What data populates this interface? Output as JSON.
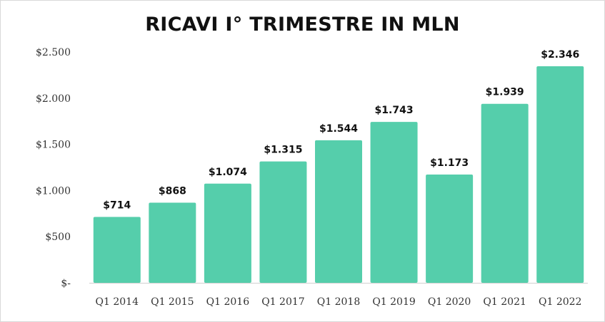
{
  "chart_data": {
    "type": "bar",
    "title": "RICAVI I° TRIMESTRE IN MLN",
    "xlabel": "",
    "ylabel": "",
    "categories": [
      "Q1 2014",
      "Q1 2015",
      "Q1 2016",
      "Q1 2017",
      "Q1 2018",
      "Q1 2019",
      "Q1 2020",
      "Q1 2021",
      "Q1 2022"
    ],
    "values": [
      714,
      868,
      1074,
      1315,
      1544,
      1743,
      1173,
      1939,
      2346
    ],
    "data_labels": [
      "$714",
      "$868",
      "$1.074",
      "$1.315",
      "$1.544",
      "$1.743",
      "$1.173",
      "$1.939",
      "$2.346"
    ],
    "ylim": [
      0,
      2500
    ],
    "yticks": [
      0,
      500,
      1000,
      1500,
      2000,
      2500
    ],
    "ytick_labels": [
      "$-",
      "$500",
      "$1.000",
      "$1.500",
      "$2.000",
      "$2.500"
    ],
    "grid": false,
    "legend": "none",
    "bar_color": "#55CEAB"
  }
}
